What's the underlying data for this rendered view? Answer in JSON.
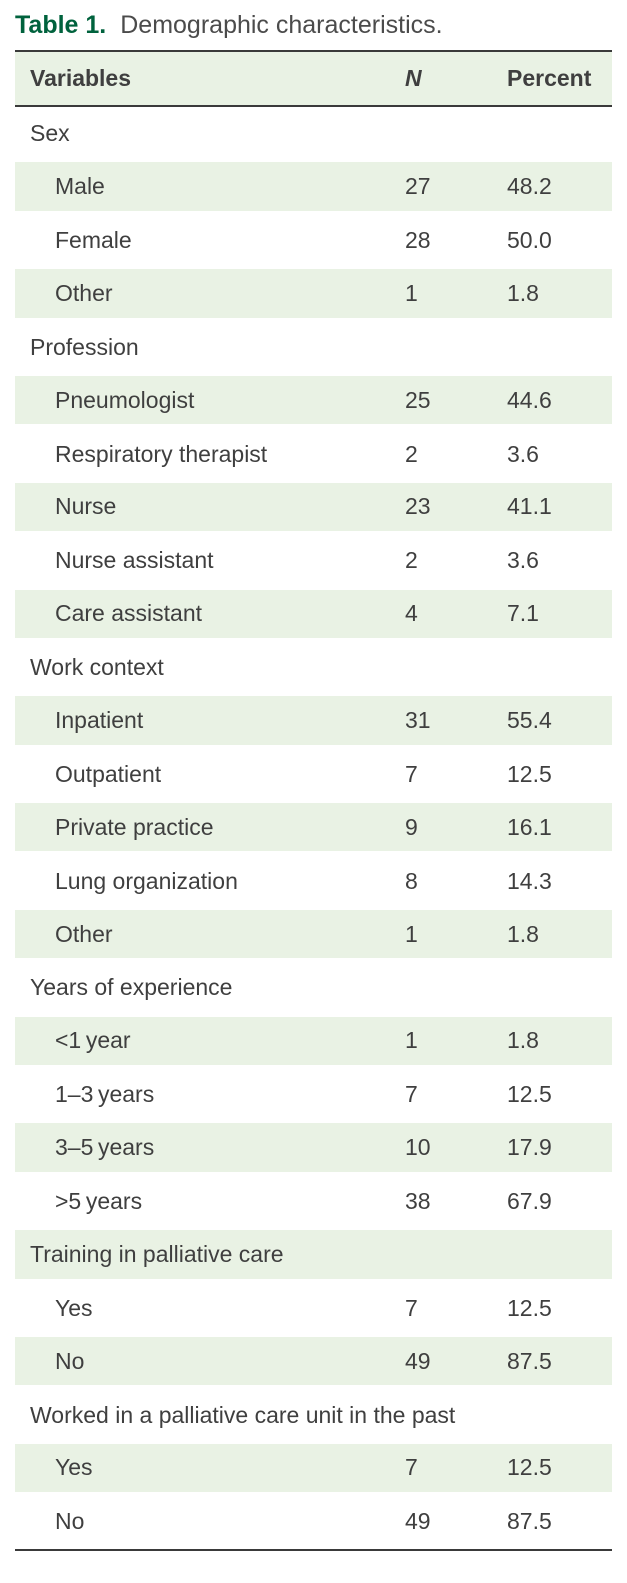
{
  "title": {
    "label": "Table 1.",
    "caption": "Demographic characteristics."
  },
  "table": {
    "columns": {
      "variable": "Variables",
      "n": "N",
      "percent": "Percent"
    },
    "sections": [
      {
        "header": "Sex",
        "rows": [
          {
            "label": "Male",
            "n": "27",
            "percent": "48.2"
          },
          {
            "label": "Female",
            "n": "28",
            "percent": "50.0"
          },
          {
            "label": "Other",
            "n": "1",
            "percent": "1.8"
          }
        ]
      },
      {
        "header": "Profession",
        "rows": [
          {
            "label": "Pneumologist",
            "n": "25",
            "percent": "44.6"
          },
          {
            "label": "Respiratory therapist",
            "n": "2",
            "percent": "3.6"
          },
          {
            "label": "Nurse",
            "n": "23",
            "percent": "41.1"
          },
          {
            "label": "Nurse assistant",
            "n": "2",
            "percent": "3.6"
          },
          {
            "label": "Care assistant",
            "n": "4",
            "percent": "7.1"
          }
        ]
      },
      {
        "header": "Work context",
        "rows": [
          {
            "label": "Inpatient",
            "n": "31",
            "percent": "55.4"
          },
          {
            "label": "Outpatient",
            "n": "7",
            "percent": "12.5"
          },
          {
            "label": "Private practice",
            "n": "9",
            "percent": "16.1"
          },
          {
            "label": "Lung organization",
            "n": "8",
            "percent": "14.3"
          },
          {
            "label": "Other",
            "n": "1",
            "percent": "1.8"
          }
        ]
      },
      {
        "header": "Years of experience",
        "rows": [
          {
            "label": "<1 year",
            "n": "1",
            "percent": "1.8"
          },
          {
            "label": "1–3 years",
            "n": "7",
            "percent": "12.5"
          },
          {
            "label": "3–5 years",
            "n": "10",
            "percent": "17.9"
          },
          {
            "label": ">5 years",
            "n": "38",
            "percent": "67.9"
          }
        ]
      },
      {
        "header": "Training in palliative care",
        "rows": [
          {
            "label": "Yes",
            "n": "7",
            "percent": "12.5"
          },
          {
            "label": "No",
            "n": "49",
            "percent": "87.5"
          }
        ]
      },
      {
        "header": "Worked in a palliative care unit in the past",
        "rows": [
          {
            "label": "Yes",
            "n": "7",
            "percent": "12.5"
          },
          {
            "label": "No",
            "n": "49",
            "percent": "87.5"
          }
        ]
      }
    ]
  },
  "colors": {
    "accent_green": "#00623d",
    "stripe_green": "#e9f2e4",
    "rule_gray": "#3a3a3a",
    "text_gray": "#3f3f3f",
    "caption_gray": "#4b4b4b"
  }
}
